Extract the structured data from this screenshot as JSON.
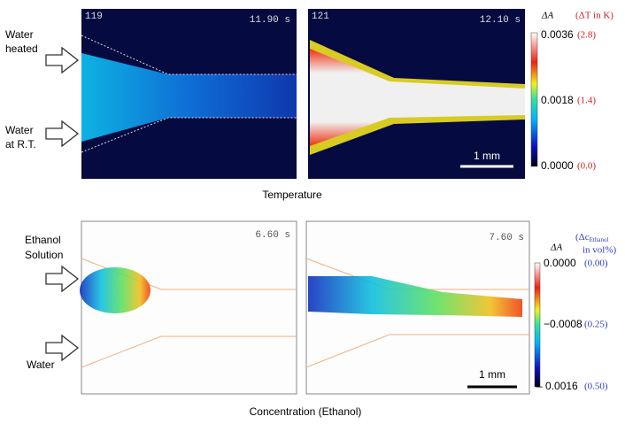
{
  "top": {
    "panels": [
      {
        "frame": "119",
        "time": "11.90 s"
      },
      {
        "frame": "121",
        "time": "12.10 s"
      }
    ],
    "inlet_labels": [
      [
        "Water",
        "heated"
      ],
      [
        "Water",
        "at R.T."
      ]
    ],
    "scale_bar": "1 mm",
    "caption": "Temperature",
    "colorbar": {
      "symbol": "ΔA",
      "unit": "(ΔT in K)",
      "ticks": [
        {
          "absorbance": "0.0036",
          "value": "(2.8)"
        },
        {
          "absorbance": "0.0018",
          "value": "(1.4)"
        },
        {
          "absorbance": "0.0000",
          "value": "(0.0)"
        }
      ]
    }
  },
  "bottom": {
    "panels": [
      {
        "time": "6.60 s"
      },
      {
        "time": "7.60 s"
      }
    ],
    "inlet_labels": [
      [
        "Ethanol",
        "Solution"
      ],
      [
        "Water"
      ]
    ],
    "scale_bar": "1 mm",
    "caption": "Concentration (Ethanol)",
    "colorbar": {
      "symbol": "ΔA",
      "unit": [
        "(Δc",
        "Ethanol",
        "in vol%)"
      ],
      "ticks": [
        {
          "absorbance": "0.0000",
          "value": "(0.00)"
        },
        {
          "absorbance": "−0.0008",
          "value": "(0.25)"
        },
        {
          "absorbance": "– 0.0016",
          "value": "(0.50)"
        }
      ]
    }
  }
}
